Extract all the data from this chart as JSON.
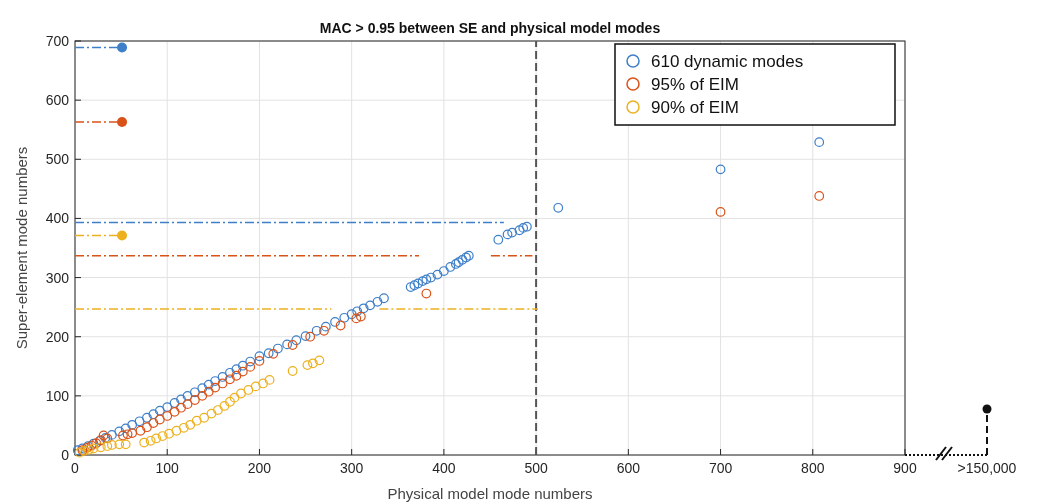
{
  "chart_data": {
    "type": "scatter",
    "title": "MAC > 0.95 between SE and physical model modes",
    "xlabel": "Physical model mode numbers",
    "ylabel": "Super-element mode numbers",
    "xlim": [
      0,
      900
    ],
    "xticks": [
      0,
      100,
      200,
      300,
      400,
      500,
      600,
      700,
      800,
      900
    ],
    "ylim": [
      0,
      700
    ],
    "yticks": [
      0,
      100,
      200,
      300,
      400,
      500,
      600,
      700
    ],
    "grid": true,
    "legend": "top right",
    "marker": "circle",
    "annotations": [
      ">150,000"
    ],
    "ref_lines": [
      {
        "axis": "x",
        "value": 500,
        "color": "#555555",
        "line_style": "dashed"
      }
    ],
    "series": [
      {
        "name": "610 dynamic modes",
        "color": "#3d7fc9",
        "x": [
          3,
          8,
          14,
          20,
          27,
          33,
          40,
          48,
          55,
          62,
          70,
          78,
          85,
          92,
          100,
          108,
          115,
          122,
          130,
          138,
          145,
          152,
          160,
          168,
          175,
          182,
          190,
          200,
          210,
          220,
          230,
          240,
          250,
          262,
          272,
          282,
          292,
          300,
          306,
          313,
          320,
          328,
          335,
          364,
          368,
          372,
          377,
          381,
          386,
          393,
          400,
          407,
          413,
          416,
          420,
          424,
          427,
          459,
          469,
          474,
          482,
          486,
          490,
          524,
          700,
          807
        ],
        "values": [
          8,
          11,
          15,
          19,
          24,
          29,
          34,
          40,
          45,
          51,
          57,
          63,
          69,
          75,
          81,
          88,
          94,
          100,
          106,
          113,
          119,
          125,
          132,
          139,
          145,
          151,
          158,
          167,
          172,
          180,
          187,
          194,
          201,
          210,
          217,
          225,
          232,
          238,
          243,
          248,
          253,
          259,
          265,
          284,
          287,
          290,
          294,
          297,
          300,
          305,
          311,
          318,
          323,
          326,
          330,
          334,
          337,
          364,
          373,
          376,
          380,
          384,
          386,
          418,
          483,
          529
        ]
      },
      {
        "name": "95% of EIM",
        "color": "#d95319",
        "x": [
          8,
          13,
          18,
          23,
          28,
          31,
          35,
          52,
          57,
          62,
          71,
          78,
          85,
          92,
          100,
          108,
          115,
          122,
          130,
          138,
          145,
          152,
          160,
          168,
          175,
          182,
          190,
          200,
          215,
          236,
          255,
          270,
          288,
          305,
          310,
          381,
          700,
          807
        ],
        "values": [
          8,
          12,
          16,
          20,
          25,
          33,
          28,
          33,
          35,
          37,
          41,
          47,
          54,
          60,
          66,
          73,
          80,
          86,
          93,
          100,
          107,
          114,
          121,
          128,
          134,
          141,
          149,
          159,
          171,
          186,
          200,
          210,
          219,
          231,
          234,
          273,
          411,
          438
        ]
      },
      {
        "name": "90% of EIM",
        "color": "#edb120",
        "x": [
          5,
          10,
          15,
          20,
          28,
          35,
          40,
          48,
          55,
          75,
          82,
          88,
          95,
          102,
          110,
          118,
          125,
          132,
          140,
          148,
          155,
          162,
          168,
          173,
          180,
          188,
          196,
          204,
          211,
          236,
          252,
          258,
          265
        ],
        "values": [
          4,
          7,
          9,
          11,
          13,
          15,
          17,
          18,
          18,
          21,
          24,
          28,
          32,
          36,
          41,
          46,
          51,
          58,
          63,
          70,
          76,
          83,
          90,
          97,
          104,
          110,
          116,
          121,
          127,
          142,
          152,
          155,
          160
        ]
      },
      {
        "type": "line",
        "color": "#3d7fc9",
        "line_style": "dashed",
        "marker": "none",
        "x": [
          0,
          465
        ],
        "values": [
          393,
          393
        ]
      },
      {
        "type": "line",
        "color": "#d95319",
        "line_style": "dashed",
        "marker": "none",
        "x": [
          0,
          373,
          412,
          451,
          496
        ],
        "values": [
          337,
          337,
          null,
          337,
          337
        ]
      },
      {
        "type": "line",
        "color": "#edb120",
        "line_style": "dashed",
        "marker": "none",
        "x": [
          0,
          278,
          304,
          330,
          502
        ],
        "values": [
          247,
          247,
          null,
          247,
          247
        ]
      },
      {
        "type": "line",
        "color": "#3d7fc9",
        "line_style": "dashed",
        "marker": "none",
        "x": [
          0,
          51
        ],
        "values": [
          689,
          689
        ]
      },
      {
        "type": "line",
        "color": "#d95319",
        "line_style": "dashed",
        "marker": "none",
        "x": [
          0,
          51
        ],
        "values": [
          563,
          563
        ]
      },
      {
        "type": "line",
        "color": "#edb120",
        "line_style": "dashed",
        "marker": "none",
        "x": [
          0,
          51
        ],
        "values": [
          371,
          371
        ]
      },
      {
        "type": "line",
        "color": "#3d7fc9",
        "marker": "circle",
        "x": [
          51
        ],
        "values": [
          689
        ]
      },
      {
        "type": "line",
        "color": "#d95319",
        "marker": "circle",
        "x": [
          51
        ],
        "values": [
          563
        ]
      },
      {
        "type": "line",
        "color": "#edb120",
        "marker": "circle",
        "x": [
          51
        ],
        "values": [
          371
        ]
      }
    ]
  }
}
